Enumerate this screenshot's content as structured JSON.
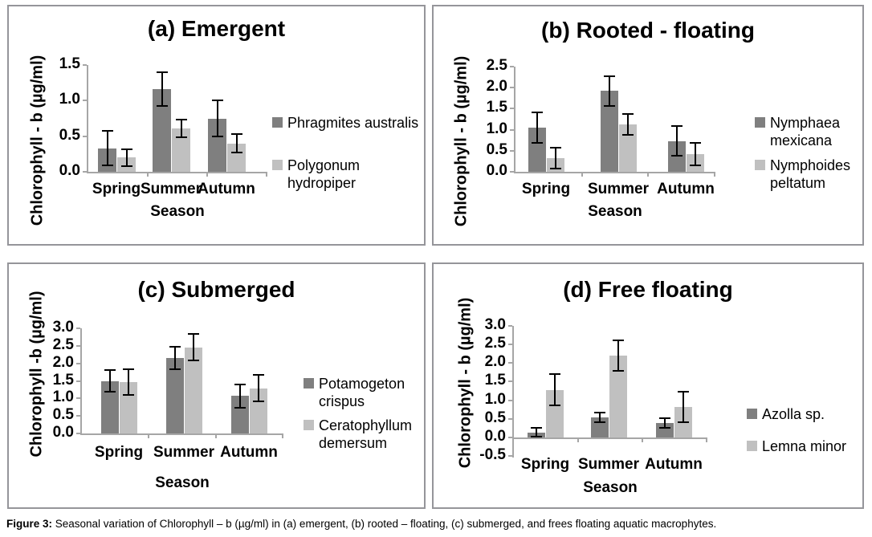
{
  "figure": {
    "caption_label": "Figure 3:",
    "caption_text": " Seasonal variation of Chlorophyll – b (µg/ml) in (a) emergent, (b) rooted – floating, (c) submerged, and frees floating aquatic macrophytes."
  },
  "colors": {
    "bar_dark": "#7f7f7f",
    "bar_light": "#c0c0c0",
    "axis": "#a6a6a6",
    "error_bar": "#000000",
    "panel_border": "#95959a"
  },
  "chart_data": [
    {
      "panel": "a",
      "type": "bar",
      "title": "(a) Emergent",
      "ylabel": "Chlorophyll - b (µg/ml)",
      "xlabel": "Season",
      "categories": [
        "Spring",
        "Summer",
        "Autumn"
      ],
      "ylim": [
        0,
        1.5
      ],
      "ytick_step": 0.5,
      "grid": false,
      "legend_position": "right",
      "series": [
        {
          "name": "Phragmites australis",
          "legend_lines": [
            "Phragmites australis"
          ],
          "color": "#7f7f7f",
          "values": [
            0.33,
            1.16,
            0.75
          ],
          "errors": [
            0.24,
            0.24,
            0.25
          ]
        },
        {
          "name": "Polygonum hydropiper",
          "legend_lines": [
            "Polygonum",
            "hydropiper"
          ],
          "color": "#c0c0c0",
          "values": [
            0.2,
            0.61,
            0.4
          ],
          "errors": [
            0.12,
            0.12,
            0.13
          ]
        }
      ]
    },
    {
      "panel": "b",
      "type": "bar",
      "title": "(b) Rooted - floating",
      "ylabel": "Chlorophyll - b (µg/ml)",
      "xlabel": "Season",
      "categories": [
        "Spring",
        "Summer",
        "Autumn"
      ],
      "ylim": [
        0,
        2.5
      ],
      "ytick_step": 0.5,
      "grid": false,
      "legend_position": "right",
      "series": [
        {
          "name": "Nymphaea mexicana",
          "legend_lines": [
            "Nymphaea",
            "mexicana"
          ],
          "color": "#7f7f7f",
          "values": [
            1.05,
            1.92,
            0.73
          ],
          "errors": [
            0.36,
            0.35,
            0.35
          ]
        },
        {
          "name": "Nymphoides peltatum",
          "legend_lines": [
            "Nymphoides",
            "peltatum"
          ],
          "color": "#c0c0c0",
          "values": [
            0.33,
            1.12,
            0.42
          ],
          "errors": [
            0.25,
            0.25,
            0.26
          ]
        }
      ]
    },
    {
      "panel": "c",
      "type": "bar",
      "title": "(c) Submerged",
      "ylabel": "Chlorophyll -b (µg/ml)",
      "xlabel": "Season",
      "categories": [
        "Spring",
        "Summer",
        "Autumn"
      ],
      "ylim": [
        0,
        3.0
      ],
      "ytick_step": 0.5,
      "grid": false,
      "legend_position": "right",
      "series": [
        {
          "name": "Potamogeton crispus",
          "legend_lines": [
            "Potamogeton",
            "crispus"
          ],
          "color": "#7f7f7f",
          "values": [
            1.5,
            2.16,
            1.07
          ],
          "errors": [
            0.31,
            0.32,
            0.33
          ]
        },
        {
          "name": "Ceratophyllum demersum",
          "legend_lines": [
            "Ceratophyllum",
            "demersum"
          ],
          "color": "#c0c0c0",
          "values": [
            1.47,
            2.46,
            1.29
          ],
          "errors": [
            0.36,
            0.37,
            0.38
          ]
        }
      ]
    },
    {
      "panel": "d",
      "type": "bar",
      "title": "(d) Free floating",
      "ylabel": "Chlorophyll - b (µg/ml)",
      "xlabel": "Season",
      "categories": [
        "Spring",
        "Summer",
        "Autumn"
      ],
      "ylim": [
        -0.5,
        3.0
      ],
      "ytick_step": 0.5,
      "grid": false,
      "legend_position": "right",
      "series": [
        {
          "name": "Azolla sp.",
          "legend_lines": [
            "Azolla sp."
          ],
          "color": "#7f7f7f",
          "values": [
            0.13,
            0.54,
            0.38
          ],
          "errors": [
            0.12,
            0.13,
            0.13
          ]
        },
        {
          "name": "Lemna minor",
          "legend_lines": [
            "Lemna minor"
          ],
          "color": "#c0c0c0",
          "values": [
            1.28,
            2.21,
            0.81
          ],
          "errors": [
            0.42,
            0.41,
            0.41
          ]
        }
      ]
    }
  ]
}
